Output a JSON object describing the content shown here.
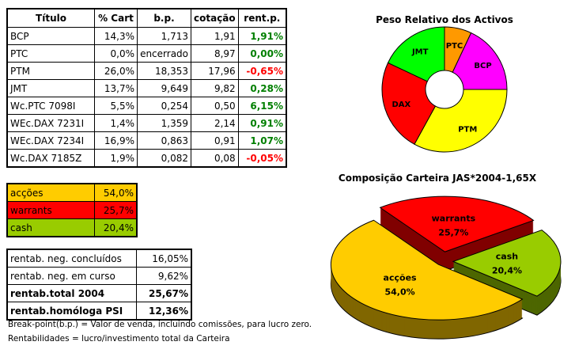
{
  "holdings": {
    "headers": [
      "Título",
      "% Cart",
      "b.p.",
      "cotação",
      "rent.p."
    ],
    "rows": [
      {
        "titulo": "BCP",
        "cart": "14,3%",
        "bp": "1,713",
        "cotacao": "1,91",
        "rent": "1,91%",
        "sign": "pos"
      },
      {
        "titulo": "PTC",
        "cart": "0,0%",
        "bp": "encerrado",
        "cotacao": "8,97",
        "rent": "0,00%",
        "sign": "pos"
      },
      {
        "titulo": "PTM",
        "cart": "26,0%",
        "bp": "18,353",
        "cotacao": "17,96",
        "rent": "-0,65%",
        "sign": "neg"
      },
      {
        "titulo": "JMT",
        "cart": "13,7%",
        "bp": "9,649",
        "cotacao": "9,82",
        "rent": "0,28%",
        "sign": "pos"
      },
      {
        "titulo": "Wc.PTC 7098I",
        "cart": "5,5%",
        "bp": "0,254",
        "cotacao": "0,50",
        "rent": "6,15%",
        "sign": "pos"
      },
      {
        "titulo": "WEc.DAX 7231I",
        "cart": "1,4%",
        "bp": "1,359",
        "cotacao": "2,14",
        "rent": "0,91%",
        "sign": "pos"
      },
      {
        "titulo": "WEc.DAX 7234I",
        "cart": "16,9%",
        "bp": "0,863",
        "cotacao": "0,91",
        "rent": "1,07%",
        "sign": "pos"
      },
      {
        "titulo": "Wc.DAX 7185Z",
        "cart": "1,9%",
        "bp": "0,082",
        "cotacao": "0,08",
        "rent": "-0,05%",
        "sign": "neg"
      }
    ]
  },
  "allocation": [
    {
      "label": "acções",
      "value": "54,0%",
      "color": "#ffcc00"
    },
    {
      "label": "warrants",
      "value": "25,7%",
      "color": "#ff0000"
    },
    {
      "label": "cash",
      "value": "20,4%",
      "color": "#99cc00"
    }
  ],
  "returns": [
    {
      "label": "rentab. neg. concluídos",
      "value": "16,05%",
      "bold": false
    },
    {
      "label": "rentab. neg. em curso",
      "value": "9,62%",
      "bold": false
    },
    {
      "label": "rentab.total 2004",
      "value": "25,67%",
      "bold": true
    },
    {
      "label": "rentab.homóloga PSI",
      "value": "12,36%",
      "bold": true
    }
  ],
  "notes": [
    "Break-point(b.p.) = Valor de venda, incluindo comissões, para lucro zero.",
    "Rentabilidades = lucro/investimento total da Carteira"
  ],
  "chart_data": [
    {
      "type": "pie",
      "variant": "donut",
      "title": "Peso Relativo dos Activos",
      "slices": [
        {
          "label": "PTC",
          "value": 7,
          "color": "#ff9900"
        },
        {
          "label": "BCP",
          "value": 18,
          "color": "#ff00ff"
        },
        {
          "label": "PTM",
          "value": 33,
          "color": "#ffff00"
        },
        {
          "label": "DAX",
          "value": 24,
          "color": "#ff0000"
        },
        {
          "label": "JMT",
          "value": 18,
          "color": "#00ff00"
        }
      ]
    },
    {
      "type": "pie",
      "variant": "3d-exploded",
      "title": "Composição Carteira JAS*2004-1,65X",
      "slices": [
        {
          "label": "warrants",
          "value": 25.7,
          "text": "25,7%",
          "color": "#ff0000",
          "side": "#800000"
        },
        {
          "label": "cash",
          "value": 20.4,
          "text": "20,4%",
          "color": "#99cc00",
          "side": "#4d6600"
        },
        {
          "label": "acções",
          "value": 54.0,
          "text": "54,0%",
          "color": "#ffcc00",
          "side": "#806600"
        }
      ]
    }
  ]
}
